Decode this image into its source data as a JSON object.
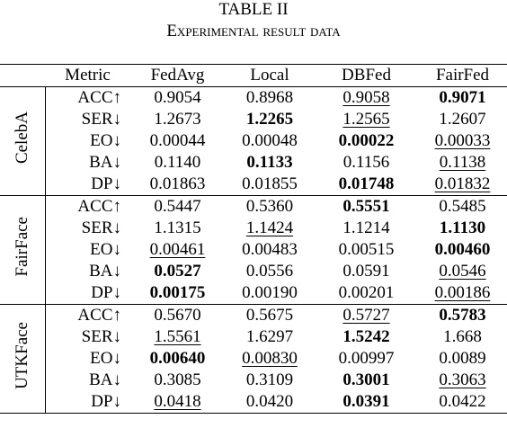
{
  "title": "TABLE II",
  "subtitle": "Experimental result data",
  "table": {
    "header": [
      "Metric",
      "FedAvg",
      "Local",
      "DBFed",
      "FairFed"
    ],
    "groups": [
      {
        "name": "CelebA",
        "rows": [
          [
            "ACC↑",
            "0.9054",
            "0.8968",
            "0.9058",
            "0.9071"
          ],
          [
            "SER↓",
            "1.2673",
            "1.2265",
            "1.2565",
            "1.2607"
          ],
          [
            "EO↓",
            "0.00044",
            "0.00048",
            "0.00022",
            "0.00033"
          ],
          [
            "BA↓",
            "0.1140",
            "0.1133",
            "0.1156",
            "0.1138"
          ],
          [
            "DP↓",
            "0.01863",
            "0.01855",
            "0.01748",
            "0.01832"
          ]
        ]
      },
      {
        "name": "FairFace",
        "rows": [
          [
            "ACC↑",
            "0.5447",
            "0.5360",
            "0.5551",
            "0.5485"
          ],
          [
            "SER↓",
            "1.1315",
            "1.1424",
            "1.1214",
            "1.1130"
          ],
          [
            "EO↓",
            "0.00461",
            "0.00483",
            "0.00515",
            "0.00460"
          ],
          [
            "BA↓",
            "0.0527",
            "0.0556",
            "0.0591",
            "0.0546"
          ],
          [
            "DP↓",
            "0.00175",
            "0.00190",
            "0.00201",
            "0.00186"
          ]
        ]
      },
      {
        "name": "UTKFace",
        "rows": [
          [
            "ACC↑",
            "0.5670",
            "0.5675",
            "0.5727",
            "0.5783"
          ],
          [
            "SER↓",
            "1.5561",
            "1.6297",
            "1.5242",
            "1.668"
          ],
          [
            "EO↓",
            "0.00640",
            "0.00830",
            "0.00997",
            "0.0089"
          ],
          [
            "BA↓",
            "0.3085",
            "0.3109",
            "0.3001",
            "0.3063"
          ],
          [
            "DP↓",
            "0.0418",
            "0.0420",
            "0.0391",
            "0.0422"
          ]
        ]
      }
    ]
  }
}
